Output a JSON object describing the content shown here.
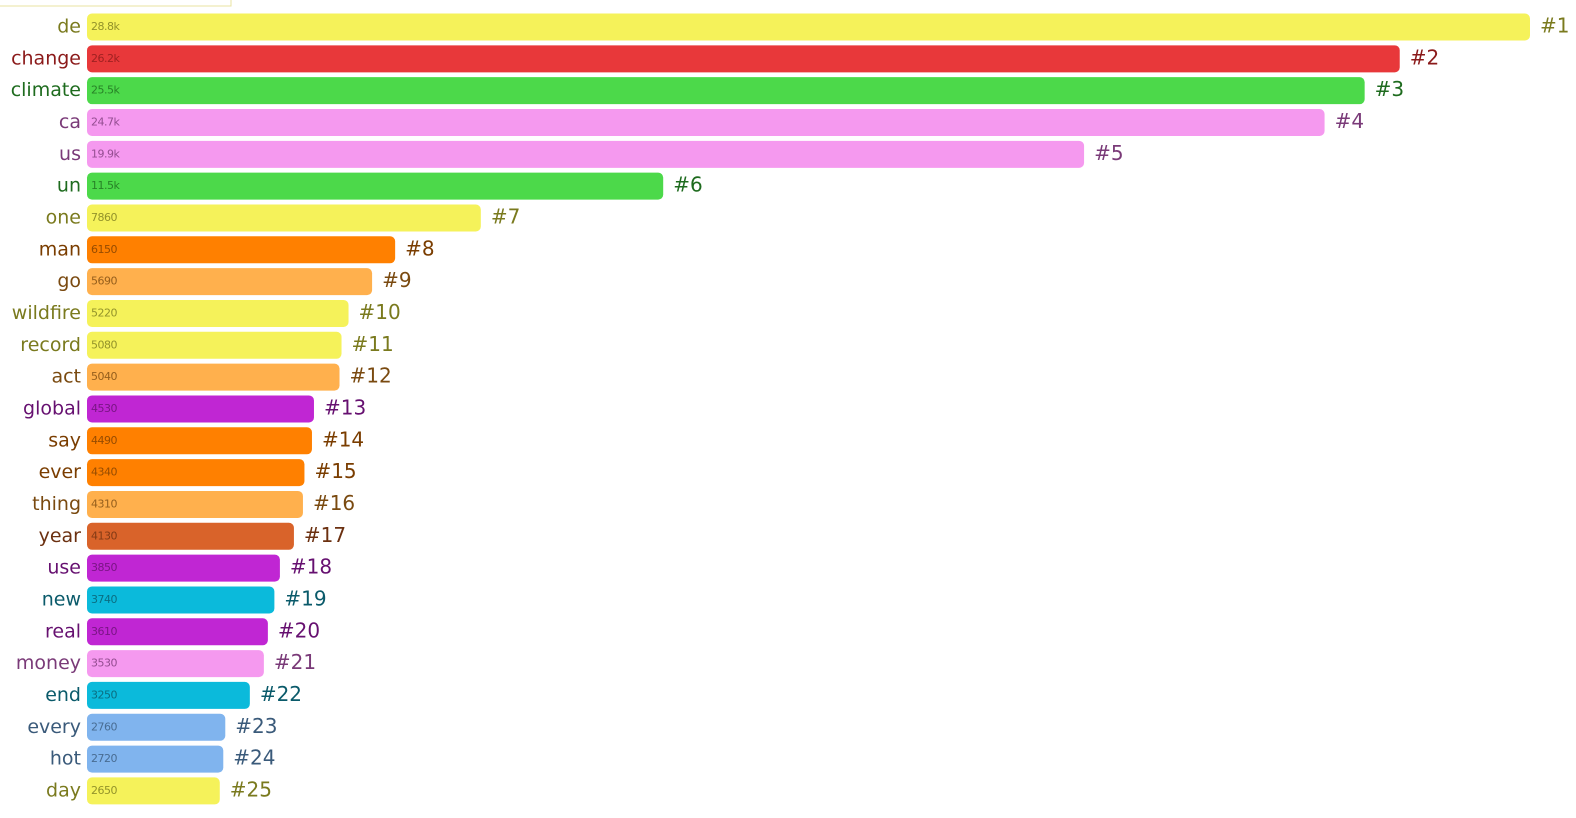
{
  "chart_data": {
    "type": "bar",
    "orientation": "horizontal",
    "categories": [
      "de",
      "change",
      "climate",
      "ca",
      "us",
      "un",
      "one",
      "man",
      "go",
      "wildfire",
      "record",
      "act",
      "global",
      "say",
      "ever",
      "thing",
      "year",
      "use",
      "new",
      "real",
      "money",
      "end",
      "every",
      "hot",
      "day"
    ],
    "values": [
      28800,
      26200,
      25500,
      24700,
      19900,
      11500,
      7860,
      6150,
      5690,
      5220,
      5080,
      5040,
      4530,
      4490,
      4340,
      4310,
      4130,
      3850,
      3740,
      3610,
      3530,
      3250,
      2760,
      2720,
      2650
    ],
    "value_labels": [
      "28.8k",
      "26.2k",
      "25.5k",
      "24.7k",
      "19.9k",
      "11.5k",
      "7860",
      "6150",
      "5690",
      "5220",
      "5080",
      "5040",
      "4530",
      "4490",
      "4340",
      "4310",
      "4130",
      "3850",
      "3740",
      "3610",
      "3530",
      "3250",
      "2760",
      "2720",
      "2650"
    ],
    "rank_labels": [
      "#1",
      "#2",
      "#3",
      "#4",
      "#5",
      "#6",
      "#7",
      "#8",
      "#9",
      "#10",
      "#11",
      "#12",
      "#13",
      "#14",
      "#15",
      "#16",
      "#17",
      "#18",
      "#19",
      "#20",
      "#21",
      "#22",
      "#23",
      "#24",
      "#25"
    ],
    "colors": [
      "#f5f25a",
      "#e8383a",
      "#4cd94a",
      "#f599ef",
      "#f599ef",
      "#4cd94a",
      "#f5f25a",
      "#ff8000",
      "#ffb04d",
      "#f5f25a",
      "#f5f25a",
      "#ffb04d",
      "#c026d3",
      "#ff8000",
      "#ff8000",
      "#ffb04d",
      "#d9632a",
      "#c026d3",
      "#0bbadb",
      "#c026d3",
      "#f599ef",
      "#0bbadb",
      "#80b4ee",
      "#80b4ee",
      "#f5f25a"
    ],
    "text_colors": [
      "#7a7a1e",
      "#8b1a1a",
      "#1e6b1e",
      "#7a3a78",
      "#7a3a78",
      "#1e6b1e",
      "#7a7a1e",
      "#7a3d00",
      "#7a4a10",
      "#7a7a1e",
      "#7a7a1e",
      "#7a4a10",
      "#661070",
      "#7a3d00",
      "#7a3d00",
      "#7a4a10",
      "#6b3010",
      "#661070",
      "#0a5a6a",
      "#661070",
      "#7a3a78",
      "#0a5a6a",
      "#3a5a7a",
      "#3a5a7a",
      "#7a7a1e"
    ],
    "xlim": [
      0,
      28800
    ]
  }
}
